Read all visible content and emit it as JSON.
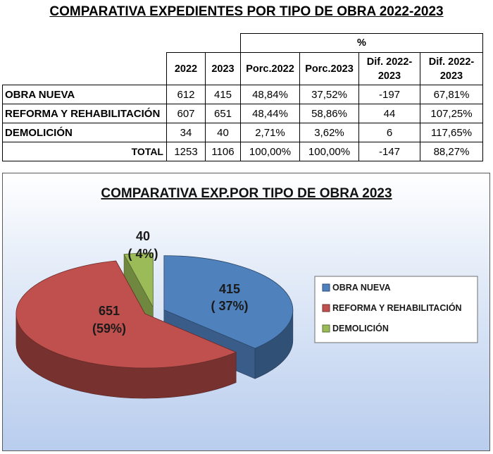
{
  "title": "COMPARATIVA EXPEDIENTES POR TIPO DE OBRA 2022-2023",
  "table": {
    "percent_header": "%",
    "headers": [
      "2022",
      "2023",
      "Porc.2022",
      "Porc.2023",
      "Dif. 2022-2023",
      "Dif. 2022-2023"
    ],
    "rows": [
      {
        "label": "OBRA NUEVA",
        "cells": [
          "612",
          "415",
          "48,84%",
          "37,52%",
          "-197",
          "67,81%"
        ]
      },
      {
        "label": "REFORMA Y REHABILITACIÓN",
        "cells": [
          "607",
          "651",
          "48,44%",
          "58,86%",
          "44",
          "107,25%"
        ]
      },
      {
        "label": "DEMOLICIÓN",
        "cells": [
          "34",
          "40",
          "2,71%",
          "3,62%",
          "6",
          "117,65%"
        ]
      }
    ],
    "total": {
      "label": "TOTAL",
      "cells": [
        "1253",
        "1106",
        "100,00%",
        "100,00%",
        "-147",
        "88,27%"
      ]
    }
  },
  "chart_data": {
    "type": "pie",
    "title": "COMPARATIVA EXP.POR TIPO DE OBRA 2023",
    "categories": [
      "OBRA NUEVA",
      "REFORMA Y REHABILITACIÓN",
      "DEMOLICIÓN"
    ],
    "values": [
      415,
      651,
      40
    ],
    "data_labels": [
      {
        "value": "415",
        "percent": "( 37%)"
      },
      {
        "value": "651",
        "percent": "(59%)"
      },
      {
        "value": "40",
        "percent": "( 4%)"
      }
    ],
    "colors": [
      "#4f81bd",
      "#c0504d",
      "#9bbb59"
    ],
    "legend_position": "right",
    "exploded": true,
    "style": "3d"
  }
}
